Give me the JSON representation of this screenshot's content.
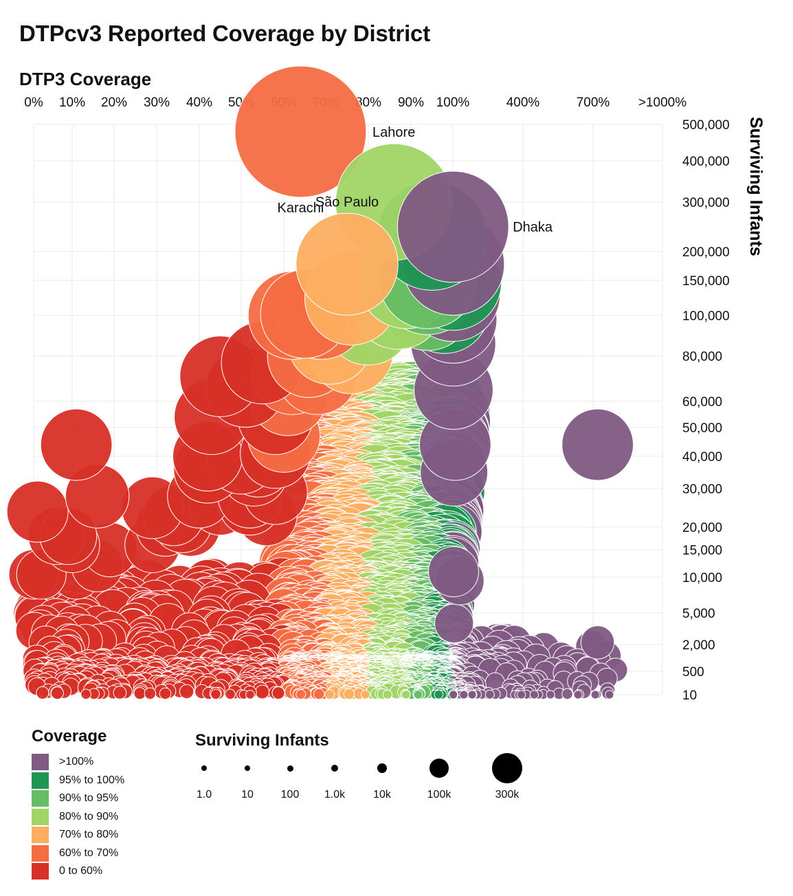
{
  "title": "DTPcv3 Reported Coverage by District",
  "legend_coverage": {
    "title": "Coverage",
    "items": [
      {
        "label": ">100%",
        "color": "#7f5a83"
      },
      {
        "label": "95% to 100%",
        "color": "#1f9652"
      },
      {
        "label": "90% to 95%",
        "color": "#66bd63"
      },
      {
        "label": "80% to 90%",
        "color": "#a1d566"
      },
      {
        "label": "70% to 80%",
        "color": "#fdae61"
      },
      {
        "label": "60% to 70%",
        "color": "#f46d43"
      },
      {
        "label": "0 to 60%",
        "color": "#d73027"
      }
    ]
  },
  "legend_size": {
    "title": "Surviving Infants",
    "items": [
      {
        "label": "1.0",
        "value": 1
      },
      {
        "label": "10",
        "value": 10
      },
      {
        "label": "100",
        "value": 100
      },
      {
        "label": "1.0k",
        "value": 1000
      },
      {
        "label": "10k",
        "value": 10000
      },
      {
        "label": "100k",
        "value": 100000
      },
      {
        "label": "300k",
        "value": 300000
      }
    ]
  },
  "chart_data": {
    "type": "scatter",
    "title": "DTPcv3 Reported Coverage by District",
    "xlabel": "DTP3 Coverage",
    "ylabel": "Surviving Infants",
    "x_ticks": [
      "0%",
      "10%",
      "20%",
      "30%",
      "40%",
      "50%",
      "60%",
      "70%",
      "80%",
      "90%",
      "100%",
      "400%",
      "700%",
      ">1000%"
    ],
    "y_ticks": [
      "500,000",
      "400,000",
      "300,000",
      "200,000",
      "150,000",
      "100,000",
      "80,000",
      "60,000",
      "50,000",
      "40,000",
      "30,000",
      "20,000",
      "15,000",
      "10,000",
      "5,000",
      "2,000",
      "500",
      "10"
    ],
    "grid": true,
    "bin_colors": [
      "#d73027",
      "#f46d43",
      "#fdae61",
      "#a1d566",
      "#66bd63",
      "#1f9652",
      "#7f5a83"
    ],
    "labeled_points": [
      {
        "name": "Karachi",
        "coverage": 64,
        "infants": 480000,
        "label_pos": "below"
      },
      {
        "name": "Lahore",
        "coverage": 86,
        "infants": 300000,
        "label_pos": "above"
      },
      {
        "name": "Dhaka",
        "coverage": 101,
        "infants": 250000,
        "label_pos": "right"
      },
      {
        "name": "São Paulo",
        "coverage": 75,
        "infants": 178000,
        "label_pos": "above"
      }
    ],
    "points": [
      {
        "coverage": 95,
        "infants": 232000
      },
      {
        "coverage": 102,
        "infants": 178000
      },
      {
        "coverage": 89,
        "infants": 151000
      },
      {
        "coverage": 94,
        "infants": 151000
      },
      {
        "coverage": 100,
        "infants": 148000
      },
      {
        "coverage": 94,
        "infants": 141000
      },
      {
        "coverage": 101,
        "infants": 130000
      },
      {
        "coverage": 76,
        "infants": 124000
      },
      {
        "coverage": 87,
        "infants": 117000
      },
      {
        "coverage": 94,
        "infants": 115000
      },
      {
        "coverage": 98,
        "infants": 110000
      },
      {
        "coverage": 62,
        "infants": 100000
      },
      {
        "coverage": 65,
        "infants": 102000
      },
      {
        "coverage": 69,
        "infants": 100000
      },
      {
        "coverage": 80,
        "infants": 97000
      },
      {
        "coverage": 101,
        "infants": 98000
      },
      {
        "coverage": 71,
        "infants": 87000
      },
      {
        "coverage": 102,
        "infants": 86000
      },
      {
        "coverage": 76,
        "infants": 82000
      },
      {
        "coverage": 66,
        "infants": 80000
      },
      {
        "coverage": 55,
        "infants": 77000
      },
      {
        "coverage": 45,
        "infants": 71000
      },
      {
        "coverage": 62,
        "infants": 72000
      },
      {
        "coverage": 68,
        "infants": 72000
      },
      {
        "coverage": 51,
        "infants": 66000
      },
      {
        "coverage": 103,
        "infants": 65000
      },
      {
        "coverage": 61,
        "infants": 62000
      },
      {
        "coverage": 43,
        "infants": 54000
      },
      {
        "coverage": 58,
        "infants": 54000
      },
      {
        "coverage": 11,
        "infants": 44000
      },
      {
        "coverage": 60,
        "infants": 47000
      },
      {
        "coverage": 110,
        "infants": 44000
      },
      {
        "coverage": 720,
        "infants": 44000
      },
      {
        "coverage": 42,
        "infants": 40000
      },
      {
        "coverage": 50,
        "infants": 39000
      },
      {
        "coverage": 54,
        "infants": 38000
      },
      {
        "coverage": 58,
        "infants": 41000
      },
      {
        "coverage": 42,
        "infants": 36000
      },
      {
        "coverage": 53,
        "infants": 35000
      },
      {
        "coverage": 105,
        "infants": 35000
      },
      {
        "coverage": 16,
        "infants": 28000
      },
      {
        "coverage": 40,
        "infants": 28000
      },
      {
        "coverage": 52,
        "infants": 28000
      },
      {
        "coverage": 58,
        "infants": 29000
      },
      {
        "coverage": 1,
        "infants": 24000
      },
      {
        "coverage": 29,
        "infants": 25000
      },
      {
        "coverage": 45,
        "infants": 26000
      },
      {
        "coverage": 52,
        "infants": 26000
      },
      {
        "coverage": 34,
        "infants": 23000
      },
      {
        "coverage": 56,
        "infants": 23000
      },
      {
        "coverage": 36,
        "infants": 21000
      },
      {
        "coverage": 32,
        "infants": 20000
      },
      {
        "coverage": 38,
        "infants": 20000
      },
      {
        "coverage": 6,
        "infants": 18000
      },
      {
        "coverage": 9,
        "infants": 18000
      },
      {
        "coverage": 10,
        "infants": 16000
      },
      {
        "coverage": 29,
        "infants": 16000
      },
      {
        "coverage": 19,
        "infants": 15000
      },
      {
        "coverage": 16,
        "infants": 12000
      },
      {
        "coverage": 11,
        "infants": 10500
      },
      {
        "coverage": 0,
        "infants": 10500
      },
      {
        "coverage": 2,
        "infants": 10500
      },
      {
        "coverage": 103,
        "infants": 11000
      },
      {
        "coverage": 130,
        "infants": 9500
      },
      {
        "coverage": 105,
        "infants": 4000
      },
      {
        "coverage": 720,
        "infants": 2200
      }
    ]
  }
}
